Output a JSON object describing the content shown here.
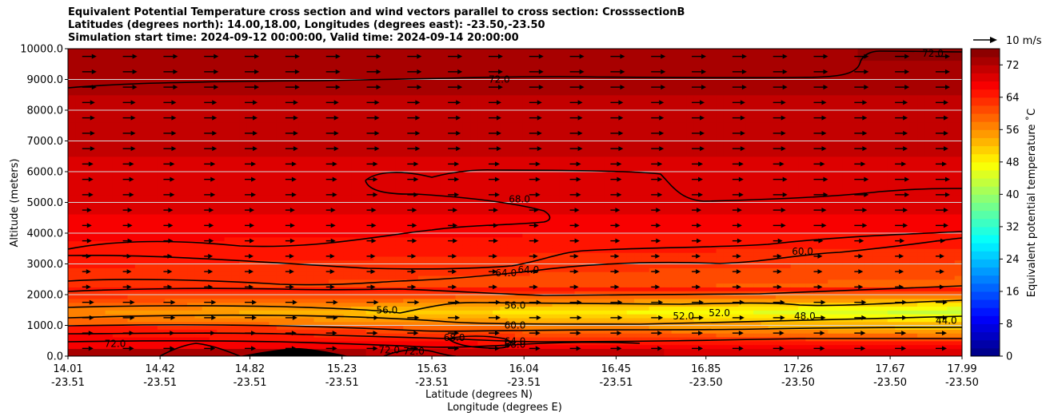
{
  "title_lines": [
    "Equivalent Potential Temperature cross section and wind vectors parallel to cross section: CrosssectionB",
    "Latitudes (degrees north): 14.00,18.00, Longitudes (degrees east): -23.50,-23.50",
    "Simulation start time: 2024-09-12 00:00:00, Valid time: 2024-09-14 20:00:00"
  ],
  "chart_data": {
    "type": "contourf",
    "title": "Equivalent Potential Temperature cross section and wind vectors parallel to cross section: CrosssectionB",
    "ylabel": "Altitude (meters)",
    "xlabel_lines": [
      "Latitude (degrees N)",
      "Longitude (degrees E)"
    ],
    "ylim": [
      0,
      10000
    ],
    "y_ticks": [
      "0.0",
      "1000.0",
      "2000.0",
      "3000.0",
      "4000.0",
      "5000.0",
      "6000.0",
      "7000.0",
      "8000.0",
      "9000.0",
      "10000.0"
    ],
    "y_tick_values": [
      0,
      1000,
      2000,
      3000,
      4000,
      5000,
      6000,
      7000,
      8000,
      9000,
      10000
    ],
    "x_ticks_lat": [
      "14.01",
      "14.42",
      "14.82",
      "15.23",
      "15.63",
      "16.04",
      "16.45",
      "16.85",
      "17.26",
      "17.67",
      "17.99"
    ],
    "x_ticks_lon": [
      "-23.51",
      "-23.51",
      "-23.51",
      "-23.51",
      "-23.51",
      "-23.51",
      "-23.51",
      "-23.50",
      "-23.50",
      "-23.50",
      "-23.50"
    ],
    "colorbar": {
      "label": "Equivalent potential temperature $^\\circ$C",
      "label_display": "Equivalent potential temperature ˚C",
      "range": [
        0,
        76
      ],
      "ticks": [
        "0",
        "8",
        "16",
        "24",
        "32",
        "40",
        "48",
        "56",
        "64",
        "72"
      ],
      "tick_values": [
        0,
        8,
        16,
        24,
        32,
        40,
        48,
        56,
        64,
        72
      ]
    },
    "contour_labels": [
      {
        "text": "72.0",
        "x": 15.93,
        "alt": 9000
      },
      {
        "text": "72.0",
        "x": 17.86,
        "alt": 9850
      },
      {
        "text": "68.0",
        "x": 16.02,
        "alt": 5100
      },
      {
        "text": "64.0",
        "x": 15.96,
        "alt": 2700
      },
      {
        "text": "64.0",
        "x": 16.06,
        "alt": 2800
      },
      {
        "text": "60.0",
        "x": 17.28,
        "alt": 3400
      },
      {
        "text": "56.0",
        "x": 16.0,
        "alt": 1650
      },
      {
        "text": "56.0",
        "x": 15.43,
        "alt": 1500
      },
      {
        "text": "60.0",
        "x": 16.0,
        "alt": 1000
      },
      {
        "text": "52.0",
        "x": 16.91,
        "alt": 1400
      },
      {
        "text": "52.0",
        "x": 16.75,
        "alt": 1300
      },
      {
        "text": "48.0",
        "x": 17.29,
        "alt": 1300
      },
      {
        "text": "44.0",
        "x": 17.92,
        "alt": 1150
      },
      {
        "text": "68.0",
        "x": 15.73,
        "alt": 600
      },
      {
        "text": "64.0",
        "x": 16.0,
        "alt": 480
      },
      {
        "text": "68.0",
        "x": 16.0,
        "alt": 380
      },
      {
        "text": "72.0",
        "x": 15.44,
        "alt": 200
      },
      {
        "text": "72.0",
        "x": 15.55,
        "alt": 150
      },
      {
        "text": "72.0",
        "x": 14.22,
        "alt": 400
      }
    ],
    "quiver_key": {
      "label": "10 m/s",
      "magnitude": 10
    }
  },
  "colors": {
    "frame": "#000000",
    "grid": "#d8d8d8",
    "contour": "#000000"
  }
}
